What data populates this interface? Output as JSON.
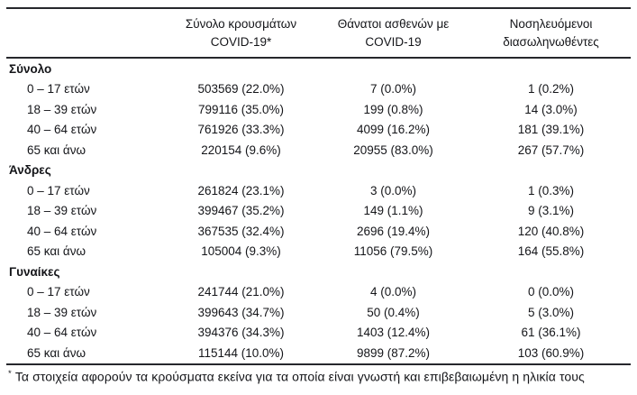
{
  "table": {
    "header": {
      "cases": {
        "line1": "Σύνολο κρουσμάτων",
        "line2": "COVID-19*"
      },
      "deaths": {
        "line1": "Θάνατοι ασθενών με",
        "line2": "COVID-19"
      },
      "intubated": {
        "line1": "Νοσηλευόμενοι",
        "line2": "διασωληνωθέντες"
      }
    },
    "groups": [
      {
        "label": "Σύνολο",
        "rows": [
          {
            "label": "0 – 17 ετών",
            "cases": "503569 (22.0%)",
            "deaths": "7 (0.0%)",
            "intubated": "1 (0.2%)"
          },
          {
            "label": "18 – 39 ετών",
            "cases": "799116 (35.0%)",
            "deaths": "199 (0.8%)",
            "intubated": "14 (3.0%)"
          },
          {
            "label": "40 – 64 ετών",
            "cases": "761926 (33.3%)",
            "deaths": "4099 (16.2%)",
            "intubated": "181 (39.1%)"
          },
          {
            "label": "65 και άνω",
            "cases": "220154 (9.6%)",
            "deaths": "20955 (83.0%)",
            "intubated": "267 (57.7%)"
          }
        ]
      },
      {
        "label": "Άνδρες",
        "rows": [
          {
            "label": "0 – 17 ετών",
            "cases": "261824 (23.1%)",
            "deaths": "3 (0.0%)",
            "intubated": "1 (0.3%)"
          },
          {
            "label": "18 – 39 ετών",
            "cases": "399467 (35.2%)",
            "deaths": "149 (1.1%)",
            "intubated": "9 (3.1%)"
          },
          {
            "label": "40 – 64 ετών",
            "cases": "367535 (32.4%)",
            "deaths": "2696 (19.4%)",
            "intubated": "120 (40.8%)"
          },
          {
            "label": "65 και άνω",
            "cases": "105004 (9.3%)",
            "deaths": "11056 (79.5%)",
            "intubated": "164 (55.8%)"
          }
        ]
      },
      {
        "label": "Γυναίκες",
        "rows": [
          {
            "label": "0 – 17 ετών",
            "cases": "241744 (21.0%)",
            "deaths": "4 (0.0%)",
            "intubated": "0 (0.0%)"
          },
          {
            "label": "18 – 39 ετών",
            "cases": "399643 (34.7%)",
            "deaths": "50 (0.4%)",
            "intubated": "5 (3.0%)"
          },
          {
            "label": "40 – 64 ετών",
            "cases": "394376 (34.3%)",
            "deaths": "1403 (12.4%)",
            "intubated": "61 (36.1%)"
          },
          {
            "label": "65 και άνω",
            "cases": "115144 (10.0%)",
            "deaths": "9899 (87.2%)",
            "intubated": "103 (60.9%)"
          }
        ]
      }
    ],
    "footnote": {
      "marker": "*",
      "text": "Τα στοιχεία αφορούν τα κρούσματα εκείνα για τα οποία είναι γνωστή και επιβεβαιωμένη η ηλικία τους"
    }
  }
}
